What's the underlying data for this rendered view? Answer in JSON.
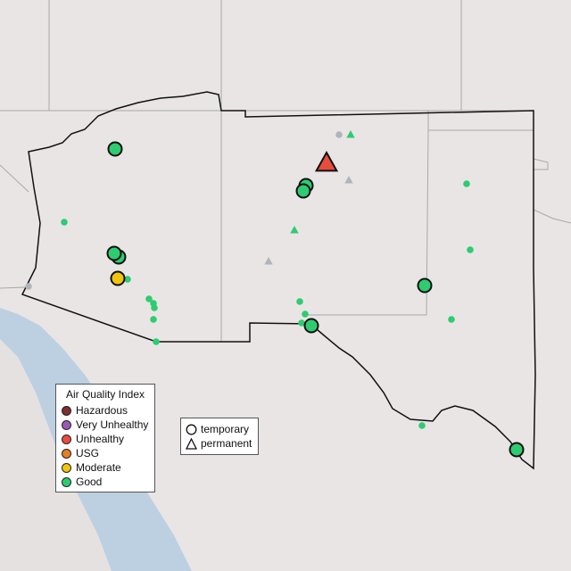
{
  "legend_aqi": {
    "title": "Air Quality Index",
    "items": [
      {
        "label": "Hazardous",
        "color": "#7e2f2f"
      },
      {
        "label": "Very Unhealthy",
        "color": "#9b59b6"
      },
      {
        "label": "Unhealthy",
        "color": "#e74c3c"
      },
      {
        "label": "USG",
        "color": "#e67e22"
      },
      {
        "label": "Moderate",
        "color": "#f1c40f"
      },
      {
        "label": "Good",
        "color": "#2ecc71"
      }
    ]
  },
  "legend_type": {
    "items": [
      {
        "label": "temporary",
        "shape": "circle"
      },
      {
        "label": "permanent",
        "shape": "triangle"
      }
    ]
  },
  "colors": {
    "no_data": "#b0b5bb",
    "water": "#bcd0e2",
    "land": "#e9e5e5"
  }
}
